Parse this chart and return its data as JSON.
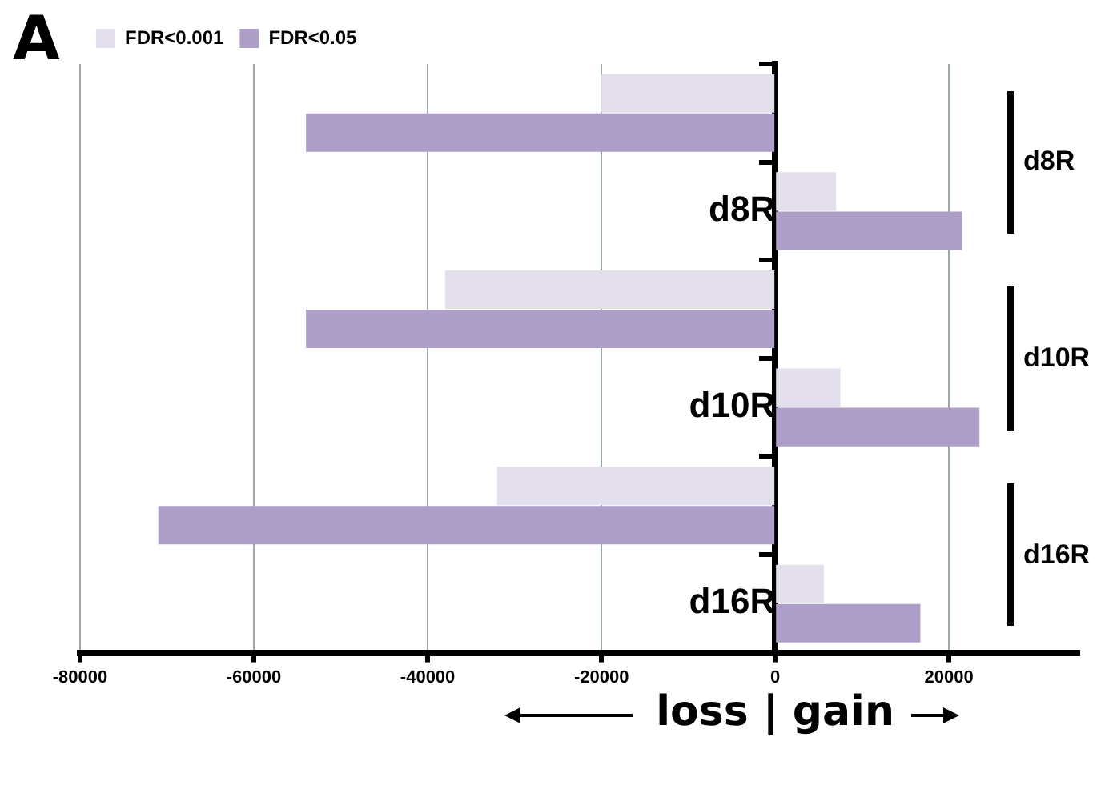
{
  "chart_data": {
    "type": "bar",
    "orientation": "horizontal",
    "title": "A",
    "xlabel": "loss | gain",
    "categories": [
      null,
      "d8R",
      null,
      "d10R",
      null,
      "d16R"
    ],
    "series": [
      {
        "name": "FDR<0.001",
        "color": "#e3dfec",
        "values": [
          -20000,
          7000,
          -38000,
          7500,
          -32000,
          5600
        ]
      },
      {
        "name": "FDR<0.05",
        "color": "#ae9fc8",
        "values": [
          -54000,
          21500,
          -54000,
          23500,
          -71000,
          16700
        ]
      }
    ],
    "xlim": [
      -80000,
      35000
    ],
    "xticks": [
      -80000,
      -60000,
      -40000,
      -20000,
      0,
      20000
    ],
    "grid": "x",
    "legend": "top left",
    "annotations": [
      "d8R",
      "d10R",
      "d16R"
    ]
  }
}
